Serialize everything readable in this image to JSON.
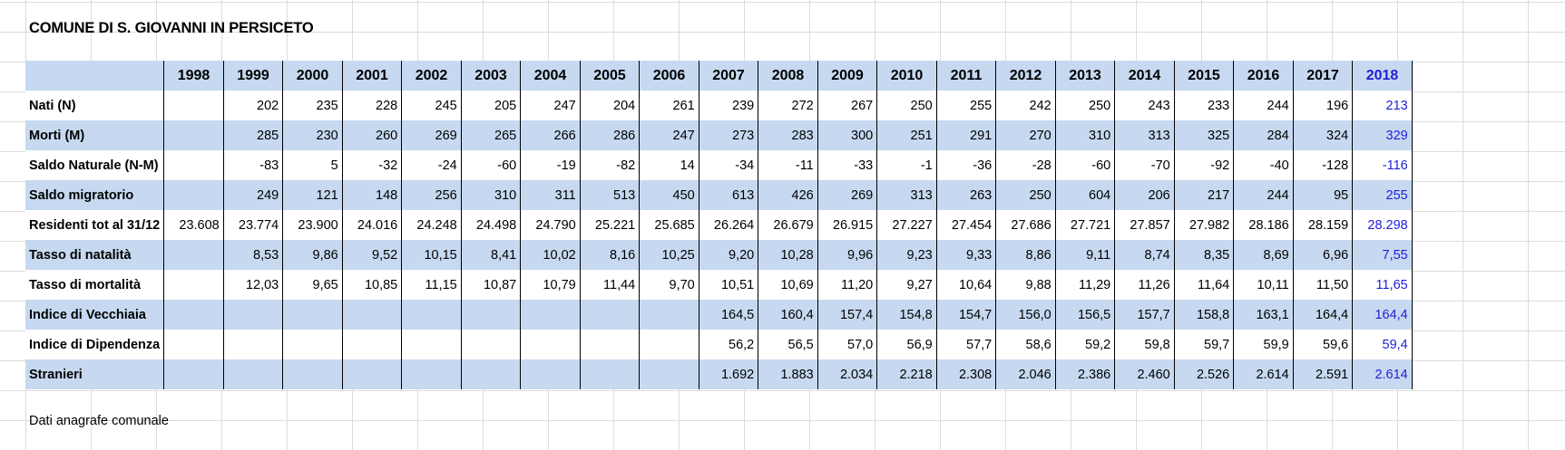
{
  "title": "COMUNE DI S. GIOVANNI IN PERSICETO",
  "footnote": "Dati anagrafe comunale",
  "years": [
    "1998",
    "1999",
    "2000",
    "2001",
    "2002",
    "2003",
    "2004",
    "2005",
    "2006",
    "2007",
    "2008",
    "2009",
    "2010",
    "2011",
    "2012",
    "2013",
    "2014",
    "2015",
    "2016",
    "2017",
    "2018"
  ],
  "rows": [
    {
      "label": "Nati (N)",
      "values": [
        "",
        "202",
        "235",
        "228",
        "245",
        "205",
        "247",
        "204",
        "261",
        "239",
        "272",
        "267",
        "250",
        "255",
        "242",
        "250",
        "243",
        "233",
        "244",
        "196",
        "213"
      ]
    },
    {
      "label": "Morti (M)",
      "values": [
        "",
        "285",
        "230",
        "260",
        "269",
        "265",
        "266",
        "286",
        "247",
        "273",
        "283",
        "300",
        "251",
        "291",
        "270",
        "310",
        "313",
        "325",
        "284",
        "324",
        "329"
      ]
    },
    {
      "label": "Saldo Naturale (N-M)",
      "values": [
        "",
        "-83",
        "5",
        "-32",
        "-24",
        "-60",
        "-19",
        "-82",
        "14",
        "-34",
        "-11",
        "-33",
        "-1",
        "-36",
        "-28",
        "-60",
        "-70",
        "-92",
        "-40",
        "-128",
        "-116"
      ]
    },
    {
      "label": "Saldo migratorio",
      "values": [
        "",
        "249",
        "121",
        "148",
        "256",
        "310",
        "311",
        "513",
        "450",
        "613",
        "426",
        "269",
        "313",
        "263",
        "250",
        "604",
        "206",
        "217",
        "244",
        "95",
        "255"
      ]
    },
    {
      "label": "Residenti tot al 31/12",
      "values": [
        "23.608",
        "23.774",
        "23.900",
        "24.016",
        "24.248",
        "24.498",
        "24.790",
        "25.221",
        "25.685",
        "26.264",
        "26.679",
        "26.915",
        "27.227",
        "27.454",
        "27.686",
        "27.721",
        "27.857",
        "27.982",
        "28.186",
        "28.159",
        "28.298"
      ]
    },
    {
      "label": "Tasso di natalità",
      "values": [
        "",
        "8,53",
        "9,86",
        "9,52",
        "10,15",
        "8,41",
        "10,02",
        "8,16",
        "10,25",
        "9,20",
        "10,28",
        "9,96",
        "9,23",
        "9,33",
        "8,86",
        "9,11",
        "8,74",
        "8,35",
        "8,69",
        "6,96",
        "7,55"
      ]
    },
    {
      "label": "Tasso di mortalità",
      "values": [
        "",
        "12,03",
        "9,65",
        "10,85",
        "11,15",
        "10,87",
        "10,79",
        "11,44",
        "9,70",
        "10,51",
        "10,69",
        "11,20",
        "9,27",
        "10,64",
        "9,88",
        "11,29",
        "11,26",
        "11,64",
        "10,11",
        "11,50",
        "11,65"
      ]
    },
    {
      "label": "Indice di Vecchiaia",
      "values": [
        "",
        "",
        "",
        "",
        "",
        "",
        "",
        "",
        "",
        "164,5",
        "160,4",
        "157,4",
        "154,8",
        "154,7",
        "156,0",
        "156,5",
        "157,7",
        "158,8",
        "163,1",
        "164,4",
        "164,4"
      ]
    },
    {
      "label": "Indice di Dipendenza",
      "values": [
        "",
        "",
        "",
        "",
        "",
        "",
        "",
        "",
        "",
        "56,2",
        "56,5",
        "57,0",
        "56,9",
        "57,7",
        "58,6",
        "59,2",
        "59,8",
        "59,7",
        "59,9",
        "59,6",
        "59,4"
      ]
    },
    {
      "label": "Stranieri",
      "values": [
        "",
        "",
        "",
        "",
        "",
        "",
        "",
        "",
        "",
        "1.692",
        "1.883",
        "2.034",
        "2.218",
        "2.308",
        "2.046",
        "2.386",
        "2.460",
        "2.526",
        "2.614",
        "2.591",
        "2.614"
      ]
    }
  ]
}
